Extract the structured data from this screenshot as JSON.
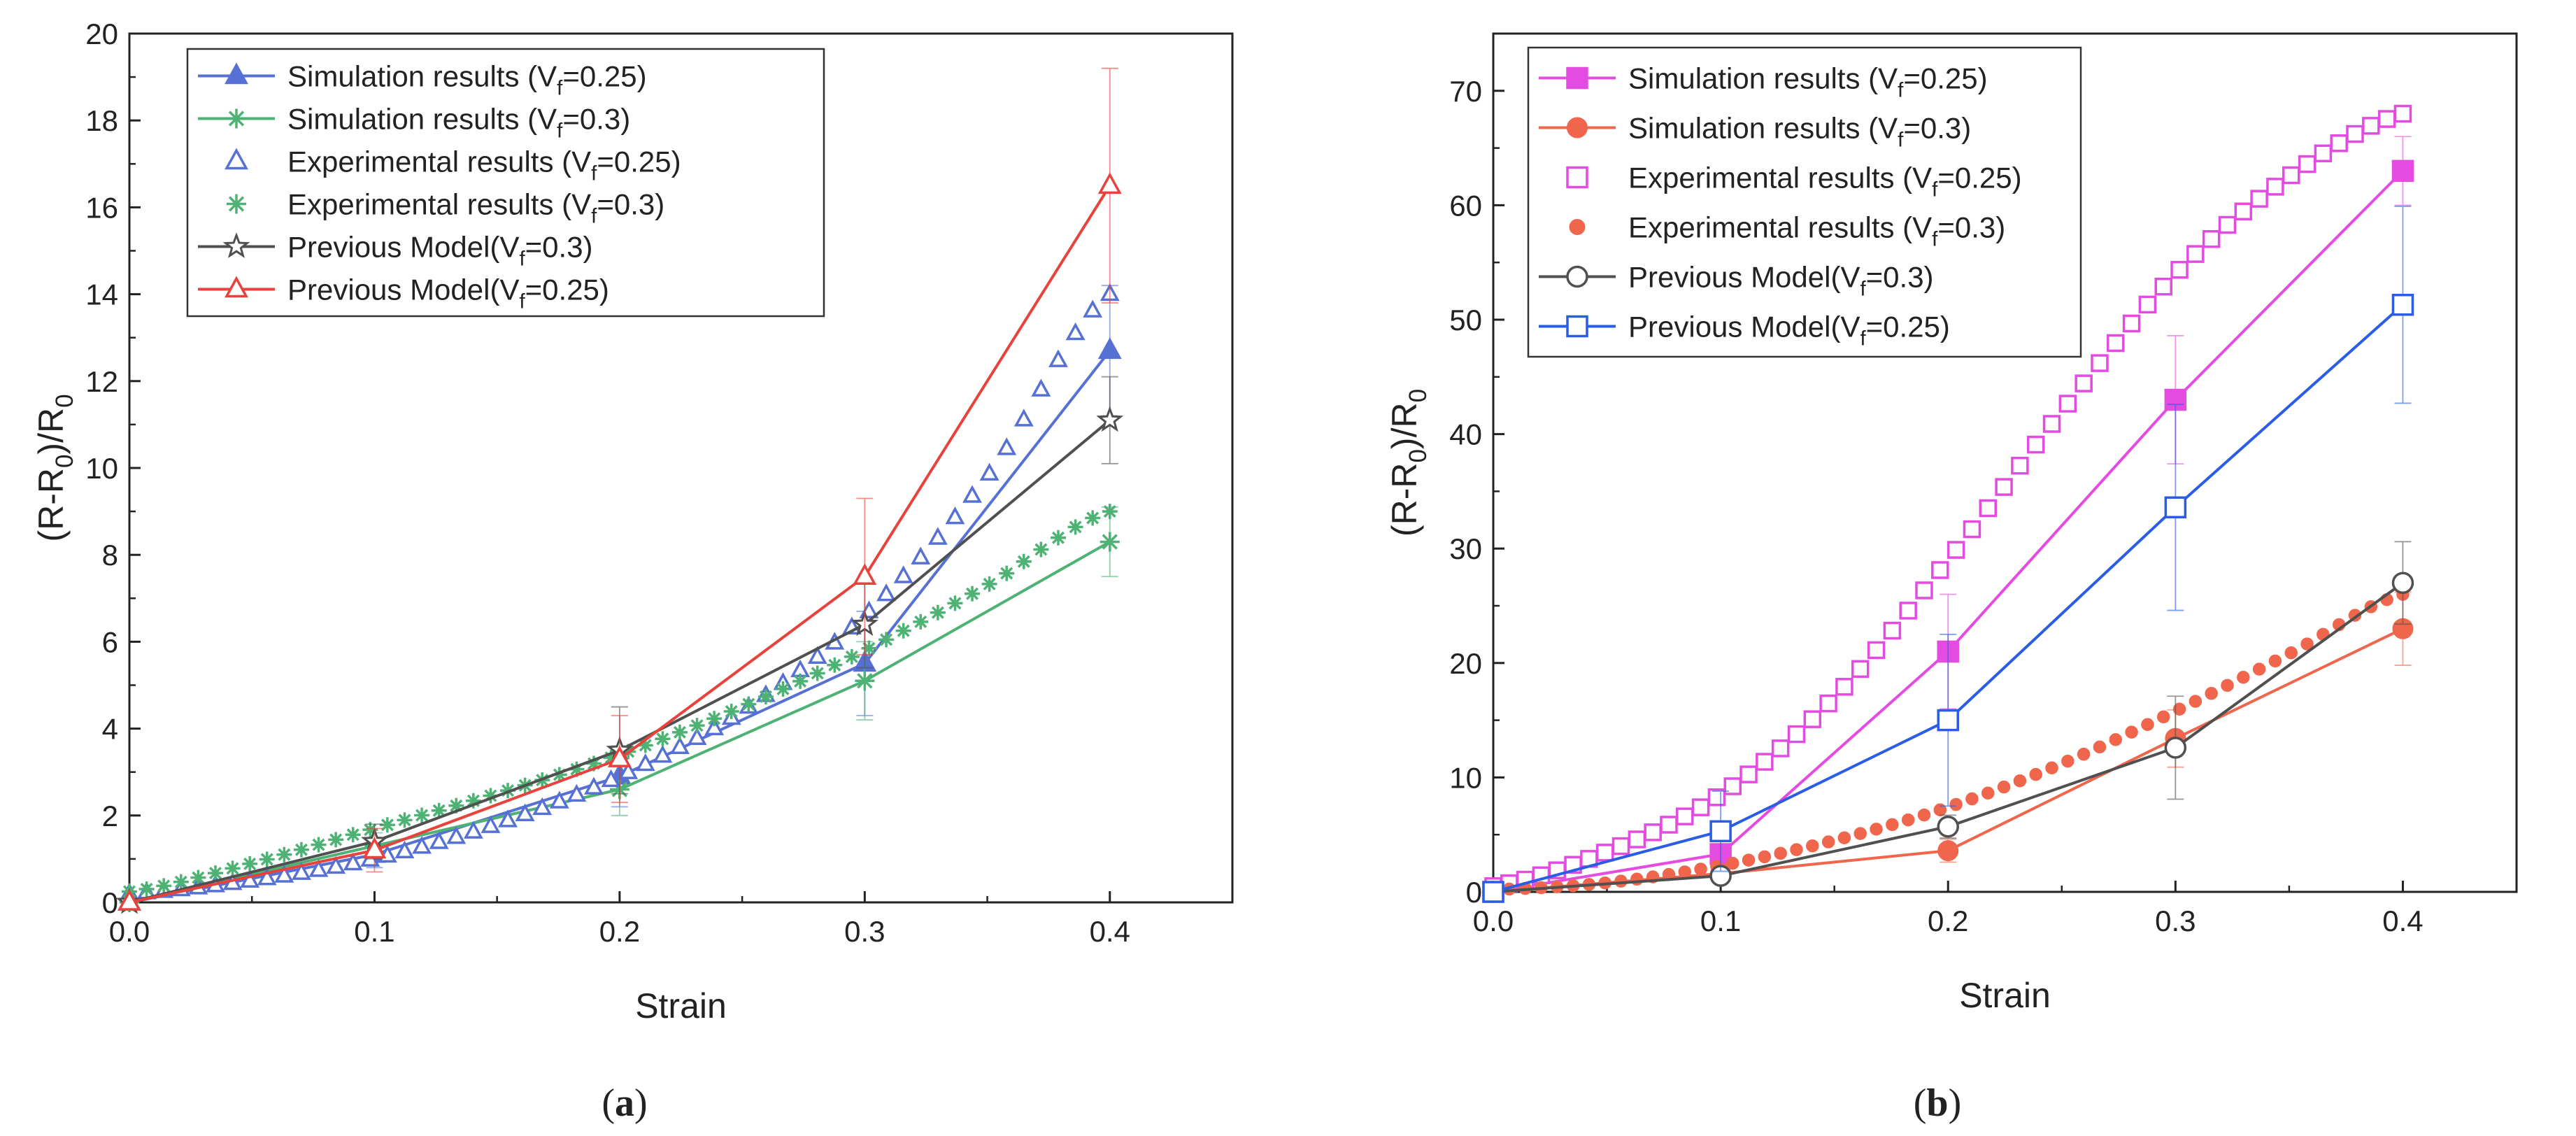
{
  "chart_data": [
    {
      "panel_label": "a",
      "type": "line",
      "xlabel": "Strain",
      "ylabel": {
        "main": "(R-R",
        "sub": "0",
        "mid": ")/R",
        "sub2": "0"
      },
      "xlim": [
        0.0,
        0.45
      ],
      "ylim": [
        0,
        20
      ],
      "xticks": [
        "0.0",
        "0.1",
        "0.2",
        "0.3",
        "0.4"
      ],
      "yticks": [
        "0",
        "2",
        "4",
        "6",
        "8",
        "10",
        "12",
        "14",
        "16",
        "18",
        "20"
      ],
      "grid": false,
      "legend_position": "top-left",
      "series": [
        {
          "name": "Simulation results (Vf=0.25)",
          "legend": {
            "pre": "Simulation results (V",
            "sub": "f",
            "post": "=0.25)"
          },
          "color": "#5670d4",
          "marker": "triangle-filled",
          "style": "line+marker",
          "x": [
            0.0,
            0.1,
            0.2,
            0.3,
            0.4
          ],
          "y": [
            0.0,
            1.1,
            2.9,
            5.5,
            12.7
          ],
          "yerr": [
            0,
            0.3,
            0.7,
            1.2,
            1.5
          ]
        },
        {
          "name": "Simulation results (Vf=0.3)",
          "legend": {
            "pre": "Simulation results (V",
            "sub": "f",
            "post": "=0.3)"
          },
          "color": "#4db273",
          "marker": "asterisk",
          "style": "line+marker",
          "x": [
            0.0,
            0.1,
            0.2,
            0.3,
            0.4
          ],
          "y": [
            0.0,
            1.3,
            2.6,
            5.1,
            8.3
          ],
          "yerr": [
            0,
            0.3,
            0.6,
            0.9,
            0.8
          ]
        },
        {
          "name": "Experimental results (Vf=0.25)",
          "legend": {
            "pre": "Experimental results (V",
            "sub": "f",
            "post": "=0.25)"
          },
          "color": "#5670d4",
          "marker": "triangle-open",
          "style": "dense-marker",
          "x": [
            0.0,
            0.05,
            0.1,
            0.15,
            0.2,
            0.25,
            0.3,
            0.35,
            0.4
          ],
          "y": [
            0.2,
            0.5,
            1.0,
            1.8,
            2.9,
            4.4,
            6.6,
            9.8,
            14.0
          ]
        },
        {
          "name": "Experimental results (Vf=0.3)",
          "legend": {
            "pre": "Experimental results (V",
            "sub": "f",
            "post": "=0.3)"
          },
          "color": "#4db273",
          "marker": "asterisk",
          "style": "dense-marker",
          "x": [
            0.0,
            0.05,
            0.1,
            0.15,
            0.2,
            0.25,
            0.3,
            0.35,
            0.4
          ],
          "y": [
            0.25,
            0.9,
            1.7,
            2.5,
            3.4,
            4.5,
            5.8,
            7.3,
            9.0
          ]
        },
        {
          "name": "Previous Model(Vf=0.3)",
          "legend": {
            "pre": "Previous Model(V",
            "sub": "f",
            "post": "=0.3)"
          },
          "color": "#505050",
          "marker": "star-open",
          "style": "line+marker",
          "x": [
            0.0,
            0.1,
            0.2,
            0.3,
            0.4
          ],
          "y": [
            0.0,
            1.4,
            3.5,
            6.4,
            11.1
          ],
          "yerr": [
            0,
            0.4,
            1.0,
            1.0,
            1.0
          ]
        },
        {
          "name": "Previous Model(Vf=0.25)",
          "legend": {
            "pre": "Previous Model(V",
            "sub": "f",
            "post": "=0.25)"
          },
          "color": "#e8423c",
          "marker": "triangle-open",
          "style": "line+marker",
          "x": [
            0.0,
            0.1,
            0.2,
            0.3,
            0.4
          ],
          "y": [
            0.0,
            1.2,
            3.3,
            7.5,
            16.5
          ],
          "yerr": [
            0,
            0.5,
            1.0,
            1.8,
            2.7
          ]
        }
      ]
    },
    {
      "panel_label": "b",
      "type": "line",
      "xlabel": "Strain",
      "ylabel": {
        "main": "(R-R",
        "sub": "0",
        "mid": ")/R",
        "sub2": "0"
      },
      "xlim": [
        0.0,
        0.45
      ],
      "ylim": [
        0,
        75
      ],
      "xticks": [
        "0.0",
        "0.1",
        "0.2",
        "0.3",
        "0.4"
      ],
      "yticks": [
        "0",
        "10",
        "20",
        "30",
        "40",
        "50",
        "60",
        "70"
      ],
      "grid": false,
      "legend_position": "top-left",
      "series": [
        {
          "name": "Simulation results (Vf=0.25)",
          "legend": {
            "pre": "Simulation results (V",
            "sub": "f",
            "post": "=0.25)"
          },
          "color": "#e44be0",
          "marker": "square-filled",
          "style": "line+marker",
          "x": [
            0.0,
            0.1,
            0.2,
            0.3,
            0.4
          ],
          "y": [
            0.0,
            3.3,
            21.0,
            43.0,
            63.0
          ],
          "yerr": [
            0,
            0.5,
            5.0,
            5.6,
            3.0
          ]
        },
        {
          "name": "Simulation results (Vf=0.3)",
          "legend": {
            "pre": "Simulation results (V",
            "sub": "f",
            "post": "=0.3)"
          },
          "color": "#f0664c",
          "marker": "circle-filled",
          "style": "line+marker",
          "x": [
            0.0,
            0.1,
            0.2,
            0.3,
            0.4
          ],
          "y": [
            0.0,
            1.6,
            3.6,
            13.4,
            23.0
          ],
          "yerr": [
            0,
            0.3,
            1.0,
            2.5,
            3.2
          ]
        },
        {
          "name": "Experimental results (Vf=0.25)",
          "legend": {
            "pre": "Experimental results (V",
            "sub": "f",
            "post": "=0.25)"
          },
          "color": "#e44be0",
          "marker": "square-open",
          "style": "dense-marker",
          "x": [
            0.0,
            0.05,
            0.1,
            0.15,
            0.2,
            0.25,
            0.3,
            0.35,
            0.4
          ],
          "y": [
            0.5,
            3.5,
            8.5,
            17.0,
            29.0,
            42.0,
            54.0,
            62.5,
            68.0
          ]
        },
        {
          "name": "Experimental results (Vf=0.3)",
          "legend": {
            "pre": "Experimental results (V",
            "sub": "f",
            "post": "=0.3)"
          },
          "color": "#f0664c",
          "marker": "circle-small",
          "style": "dense-marker",
          "x": [
            0.0,
            0.05,
            0.1,
            0.15,
            0.2,
            0.25,
            0.3,
            0.35,
            0.4
          ],
          "y": [
            0.2,
            0.8,
            2.3,
            4.5,
            7.4,
            11.2,
            15.8,
            20.8,
            26.0
          ]
        },
        {
          "name": "Previous Model(Vf=0.3)",
          "legend": {
            "pre": "Previous Model(V",
            "sub": "f",
            "post": "=0.3)"
          },
          "color": "#505050",
          "marker": "circle-open",
          "style": "line+marker",
          "x": [
            0.0,
            0.1,
            0.2,
            0.3,
            0.4
          ],
          "y": [
            0.0,
            1.4,
            5.7,
            12.6,
            27.0
          ],
          "yerr": [
            0,
            0.5,
            1.0,
            4.5,
            3.6
          ]
        },
        {
          "name": "Previous Model(Vf=0.25)",
          "legend": {
            "pre": "Previous Model(V",
            "sub": "f",
            "post": "=0.25)"
          },
          "color": "#2a5ce6",
          "marker": "square-open",
          "style": "line+marker",
          "x": [
            0.0,
            0.1,
            0.2,
            0.3,
            0.4
          ],
          "y": [
            0.0,
            5.3,
            15.0,
            33.6,
            51.3
          ],
          "yerr": [
            0,
            3.5,
            7.5,
            9.0,
            8.6
          ]
        }
      ]
    }
  ]
}
